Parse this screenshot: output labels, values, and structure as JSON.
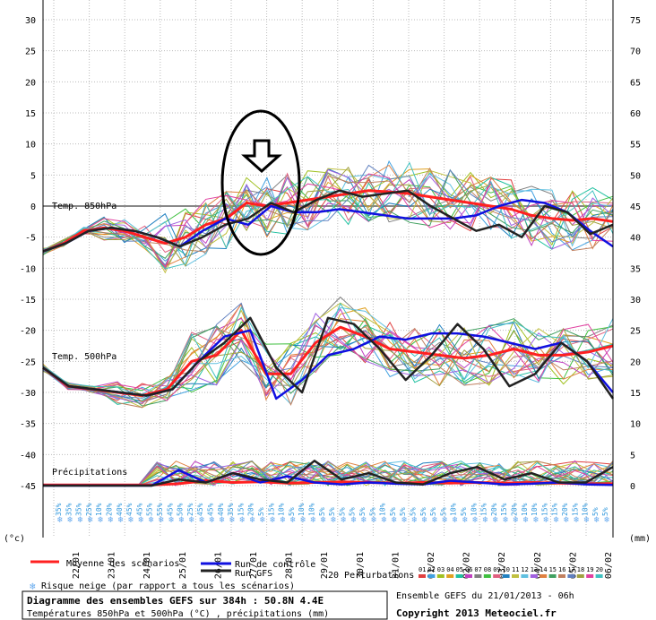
{
  "chart_data": {
    "type": "line",
    "y_left_label": "(°c)",
    "y_right_label": "(mm)",
    "y_left_ticks": [
      "30",
      "25",
      "20",
      "15",
      "10",
      "5",
      "0",
      "-5",
      "-10",
      "-15",
      "-20",
      "-25",
      "-30",
      "-35",
      "-40",
      "-45"
    ],
    "y_right_ticks": [
      "75",
      "70",
      "65",
      "60",
      "55",
      "50",
      "45",
      "40",
      "35",
      "30",
      "25",
      "20",
      "15",
      "10",
      "5",
      "0"
    ],
    "x_ticks": [
      "22/01",
      "23/01",
      "24/01",
      "25/01",
      "26/01",
      "27/01",
      "28/01",
      "29/01",
      "30/01",
      "31/01",
      "01/02",
      "02/02",
      "03/02",
      "04/02",
      "05/02",
      "06/02"
    ],
    "panel_labels": {
      "t850": "Temp. 850hPa",
      "t500": "Temp. 500hPa",
      "precip": "Précipitations"
    },
    "snow_risk": [
      "35%",
      "35%",
      "35%",
      "25%",
      "10%",
      "20%",
      "40%",
      "45%",
      "45%",
      "55%",
      "55%",
      "45%",
      "50%",
      "25%",
      "45%",
      "45%",
      "40%",
      "35%",
      "15%",
      "20%",
      "5%",
      "15%",
      "10%",
      "5%",
      "10%",
      "10%",
      "5%",
      "5%",
      "5%",
      "5%",
      "5%",
      "5%",
      "10%",
      "5%",
      "5%",
      "5%",
      "5%",
      "5%",
      "5%",
      "10%",
      "5%",
      "10%",
      "15%",
      "20%",
      "15%",
      "20%",
      "10%",
      "10%",
      "15%",
      "15%",
      "20%",
      "15%",
      "10%",
      "5%",
      "5%"
    ],
    "series": [
      {
        "name": "Moyenne des scénarios",
        "color": "#ff2020",
        "t850": [
          -7.3,
          -6,
          -4,
          -3.5,
          -4,
          -5,
          -6,
          -5,
          -3,
          -2,
          0.5,
          0,
          0.5,
          1,
          1.5,
          2,
          2.5,
          2.3,
          2,
          1.5,
          1,
          0.5,
          0,
          -0.5,
          -1.5,
          -2,
          -2.3,
          -2,
          -2.5
        ],
        "t500": [
          -26,
          -29,
          -29.5,
          -30,
          -30.5,
          -29.5,
          -25,
          -24,
          -20,
          -27,
          -27,
          -22,
          -19.5,
          -21,
          -23,
          -23.5,
          -24,
          -24.5,
          -24,
          -23,
          -24,
          -24,
          -23.5,
          -22.5
        ],
        "precip": [
          0.1,
          0.1,
          0.1,
          0.1,
          0.1,
          0.3,
          0.8,
          0.5,
          0.6,
          0.4,
          0.5,
          0.6,
          0.5,
          0.4,
          0.5,
          0.4,
          0.5,
          0.4,
          0.5,
          0.4,
          0.3,
          0.3
        ]
      },
      {
        "name": "Run de contrôle",
        "color": "#1010e0",
        "t850": [
          -7.3,
          -6,
          -4,
          -3.5,
          -4,
          -5,
          -6.5,
          -4,
          -2,
          -3,
          0,
          -1,
          -1,
          -0.5,
          -1,
          -1.5,
          -2,
          -2,
          -2,
          -1.5,
          0,
          1,
          0.5,
          -1,
          -4,
          -6.5
        ],
        "t500": [
          -26,
          -29,
          -29.5,
          -30,
          -30.5,
          -29.5,
          -25,
          -21,
          -20,
          -31,
          -28,
          -24,
          -23,
          -21,
          -21.5,
          -20.5,
          -20.5,
          -21,
          -22,
          -23,
          -22,
          -25,
          -30
        ],
        "precip": [
          0,
          0,
          0,
          0,
          0,
          2.5,
          0.5,
          2,
          0.5,
          1.5,
          0.5,
          0.2,
          0.5,
          0.3,
          0.2,
          0.8,
          0.5,
          0.2,
          0.3,
          0.5,
          0.2,
          0.1
        ]
      },
      {
        "name": "Run GFS",
        "color": "#222222",
        "t850": [
          -7.3,
          -6,
          -4,
          -3.5,
          -4,
          -5,
          -6.5,
          -5,
          -3,
          -2,
          0.5,
          -1,
          1,
          2.5,
          1.5,
          2,
          2.5,
          0,
          -2,
          -4,
          -3,
          -5,
          0,
          -1,
          -4.5,
          -3
        ],
        "t500": [
          -26,
          -29,
          -29.5,
          -30,
          -30.5,
          -29.5,
          -25,
          -22,
          -18,
          -26,
          -30,
          -18,
          -19,
          -23,
          -28,
          -24,
          -19,
          -23,
          -29,
          -27,
          -22,
          -25,
          -31
        ],
        "precip": [
          0,
          0,
          0,
          0,
          0,
          1,
          0.5,
          2,
          1,
          0.5,
          4,
          1,
          2,
          0.5,
          0.2,
          2,
          3,
          1,
          2,
          0.5,
          0.5,
          3
        ]
      }
    ],
    "perturbations_label": "20 Perturbations",
    "perturbation_ids": [
      "01",
      "02",
      "03",
      "04",
      "05",
      "06",
      "07",
      "08",
      "09",
      "10",
      "11",
      "12",
      "13",
      "14",
      "15",
      "16",
      "17",
      "18",
      "19",
      "20"
    ],
    "perturbation_colors": [
      "#e04040",
      "#40a0e0",
      "#a0c020",
      "#e0a020",
      "#20c0a0",
      "#c040c0",
      "#808080",
      "#40c040",
      "#e06080",
      "#2080c0",
      "#c0c040",
      "#60c0e0",
      "#a060e0",
      "#e08040",
      "#40a060",
      "#c08060",
      "#6080c0",
      "#a0a040",
      "#e040a0",
      "#40c0c0"
    ],
    "footer": {
      "title": "Diagramme des ensembles GEFS sur 384h : 50.8N 4.4E",
      "subtitle": "Températures 850hPa et 500hPa (°C) , précipitations (mm)",
      "right_top": "Ensemble GEFS du 21/01/2013 - 06h",
      "copyright": "Copyright 2013 Meteociel.fr"
    },
    "snow_legend": "Risque neige (par rapport a tous les scénarios)"
  }
}
